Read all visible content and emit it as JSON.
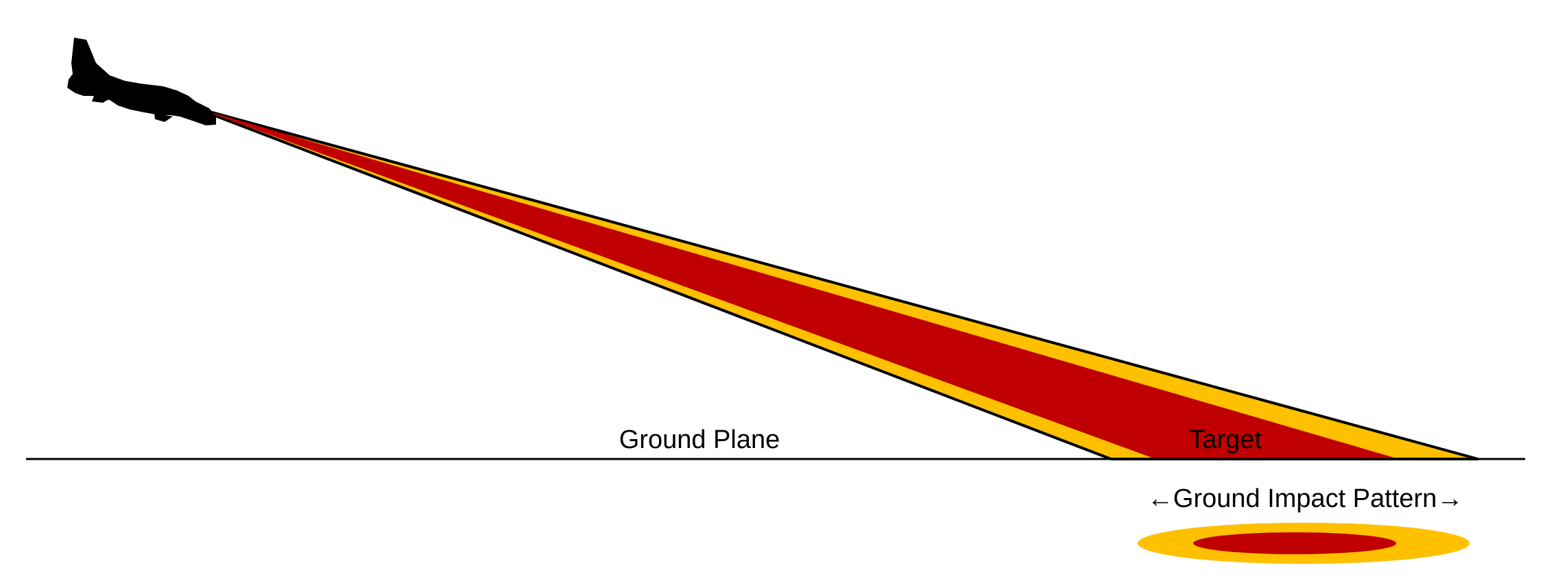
{
  "labels": {
    "ground_plane": "Ground Plane",
    "target": "Target",
    "ground_impact_pattern": "←Ground Impact Pattern→"
  },
  "colors": {
    "outer_band": "#FFC000",
    "inner_band": "#C00000",
    "ground_line": "#000000",
    "aircraft": "#000000",
    "background": "#FFFFFF"
  },
  "icons": {
    "aircraft": "fighter-jet-silhouette"
  }
}
